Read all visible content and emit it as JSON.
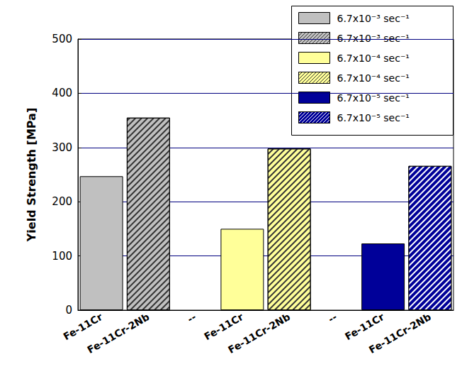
{
  "chart_data": {
    "type": "bar",
    "ylabel": "Yield Strength [MPa]",
    "categories": [
      "Fe-11Cr",
      "Fe-11Cr-2Nb",
      "--",
      "Fe-11Cr",
      "Fe-11Cr-2Nb",
      "--",
      "Fe-11Cr",
      "Fe-11Cr-2Nb"
    ],
    "ylim": [
      0,
      500
    ],
    "yticks": [
      0,
      100,
      200,
      300,
      400,
      500
    ],
    "grid": true,
    "legend": "upper right",
    "series": [
      {
        "name": "6.7x10⁻³ sec⁻¹",
        "color": "#c0c0c0",
        "marker": "solid",
        "values": [
          247,
          null,
          null,
          null,
          null,
          null,
          null,
          null
        ]
      },
      {
        "name": "6.7x10⁻³ sec⁻¹",
        "color": "#c0c0c0",
        "marker": "hatch",
        "values": [
          null,
          355,
          null,
          null,
          null,
          null,
          null,
          null
        ]
      },
      {
        "name": "6.7x10⁻⁴ sec⁻¹",
        "color": "#ffff99",
        "marker": "solid",
        "values": [
          null,
          null,
          null,
          150,
          null,
          null,
          null,
          null
        ]
      },
      {
        "name": "6.7x10⁻⁴ sec⁻¹",
        "color": "#ffff99",
        "marker": "hatch",
        "values": [
          null,
          null,
          null,
          null,
          298,
          null,
          null,
          null
        ]
      },
      {
        "name": "6.7x10⁻⁵ sec⁻¹",
        "color": "#000099",
        "marker": "solid",
        "values": [
          null,
          null,
          null,
          null,
          null,
          null,
          123,
          null
        ]
      },
      {
        "name": "6.7x10⁻⁵ sec⁻¹",
        "color": "#000099",
        "marker": "hatch",
        "values": [
          null,
          null,
          null,
          null,
          null,
          null,
          null,
          266
        ]
      }
    ]
  }
}
